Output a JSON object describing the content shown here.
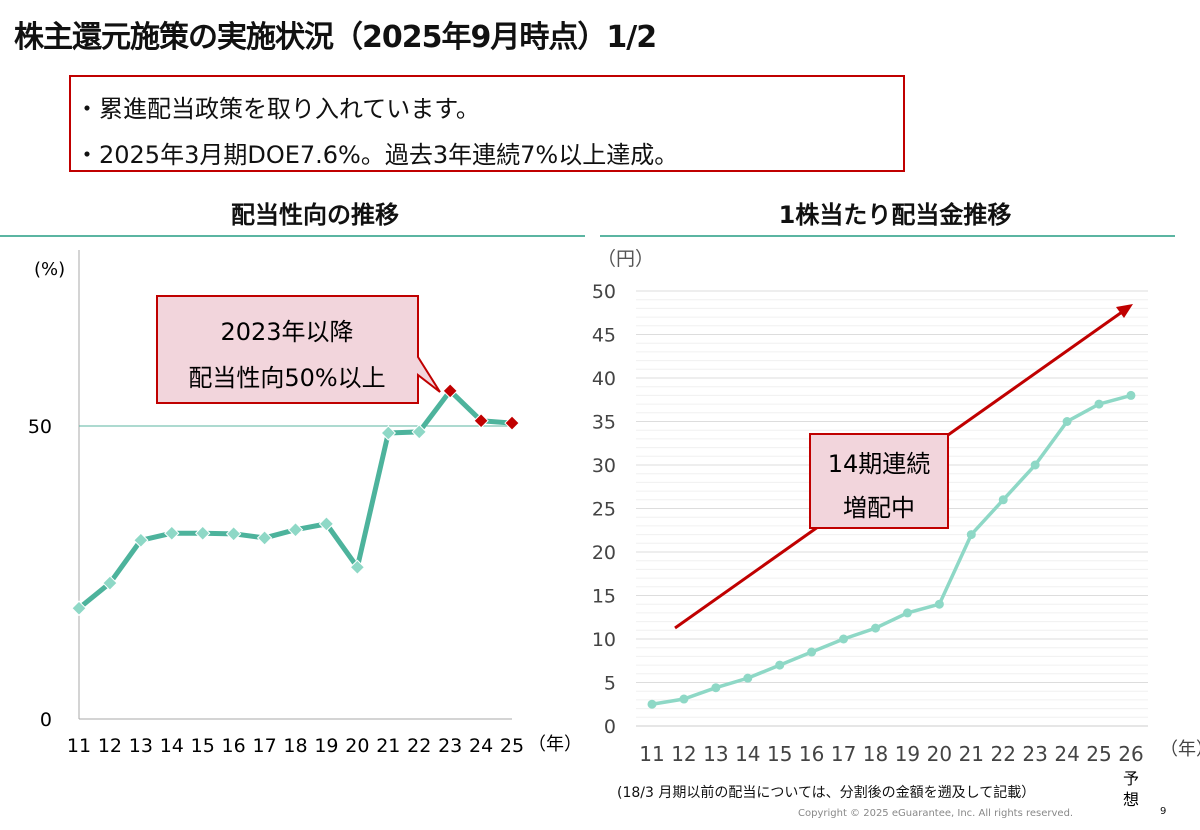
{
  "title": "株主還元施策の実施状況（2025年9月時点）1/2",
  "points": [
    "・累進配当政策を取り入れています。",
    "・2025年3月期DOE7.6%。過去3年連続7%以上達成。"
  ],
  "colors": {
    "accent": "#c00000",
    "teal_dark": "#4db39c",
    "teal_light": "#8ed8c6",
    "callout_fill": "#f2d5dc"
  },
  "chart_data": [
    {
      "type": "line",
      "title": "配当性向の推移",
      "ylabel": "(%)",
      "xlabel": "（年）",
      "ylim": [
        0,
        60
      ],
      "yticks": [
        0,
        50
      ],
      "reference_line": 50,
      "grid": false,
      "categories": [
        "11",
        "12",
        "13",
        "14",
        "15",
        "16",
        "17",
        "18",
        "19",
        "20",
        "21",
        "22",
        "23",
        "24",
        "25"
      ],
      "values": [
        18.9,
        23.2,
        30.5,
        31.7,
        31.7,
        31.6,
        30.9,
        32.3,
        33.3,
        25.9,
        48.8,
        49,
        56,
        50.9,
        50.5
      ],
      "highlighted_from": "23",
      "annotation": [
        "2023年以降",
        "配当性向50%以上"
      ]
    },
    {
      "type": "line",
      "title": "1株当たり配当金推移",
      "ylabel": "（円）",
      "xlabel": "（年）",
      "ylim": [
        0,
        50
      ],
      "yticks": [
        0,
        5,
        10,
        15,
        20,
        25,
        30,
        35,
        40,
        45,
        50
      ],
      "grid": true,
      "categories": [
        "11",
        "12",
        "13",
        "14",
        "15",
        "16",
        "17",
        "18",
        "19",
        "20",
        "21",
        "22",
        "23",
        "24",
        "25",
        "26"
      ],
      "forecast_label": "予想",
      "values": [
        2.5,
        3.1,
        4.4,
        5.5,
        7,
        8.5,
        10,
        11.25,
        13,
        14,
        22,
        26,
        30,
        35,
        37,
        38
      ],
      "annotation": [
        "14期連続",
        "増配中"
      ]
    }
  ],
  "note": "(18/3 月期以前の配当については、分割後の金額を遡及して記載）",
  "copyright": "Copyright © 2025 eGuarantee, Inc. All rights reserved.",
  "page_number": "9"
}
